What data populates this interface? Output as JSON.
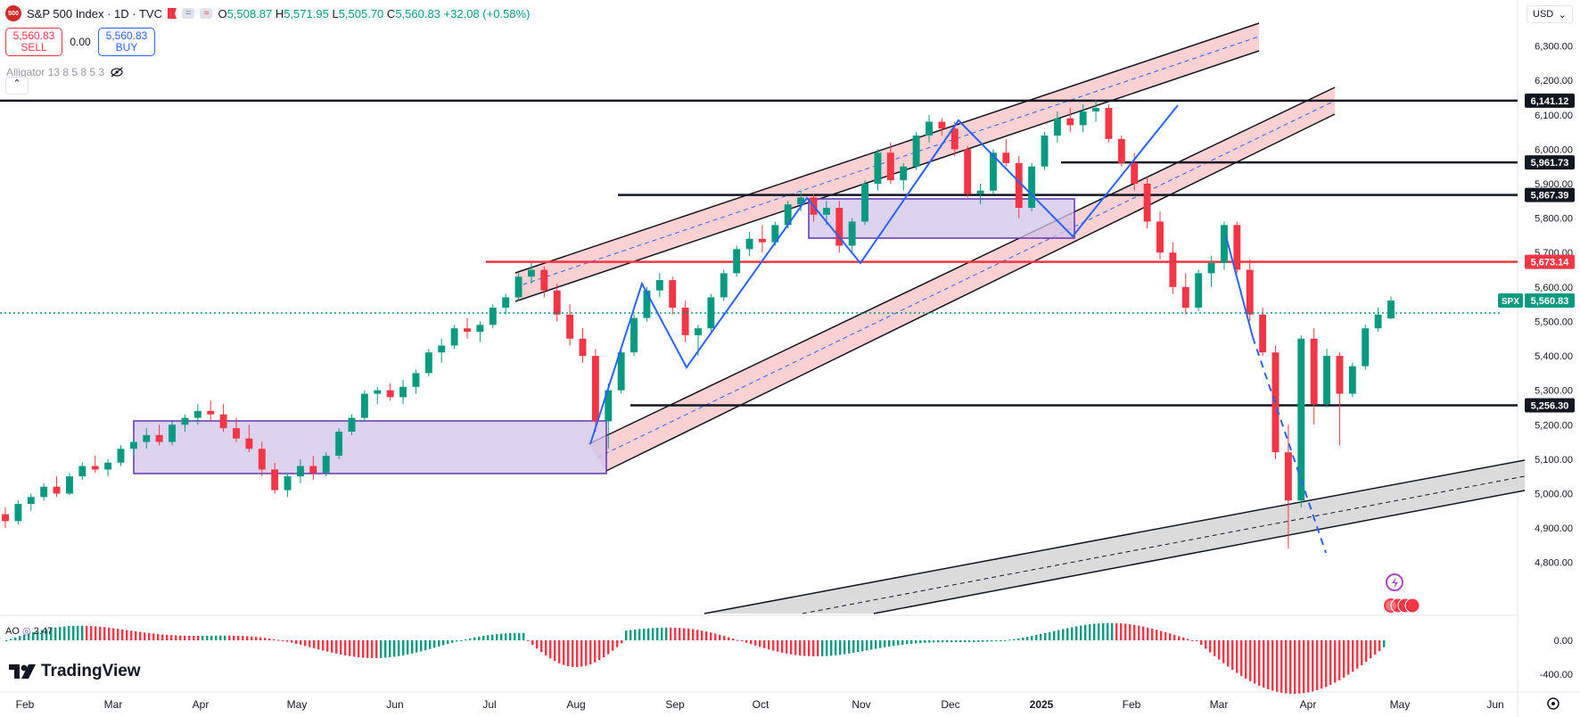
{
  "header": {
    "logo_text": "500",
    "title": "S&P 500 Index · 1D · TVC",
    "pill_eq": "=",
    "pill_wave": "≈",
    "ohlc": {
      "o_label": "O",
      "o": "5,508.87",
      "h_label": "H",
      "h": "5,571.95",
      "l_label": "L",
      "l": "5,505.70",
      "c_label": "C",
      "c": "5,560.83",
      "change": "+32.08 (+0.58%)"
    }
  },
  "trade": {
    "sell_price": "5,560.83",
    "sell_label": "SELL",
    "spread": "0.00",
    "buy_price": "5,560.83",
    "buy_label": "BUY"
  },
  "indicator": {
    "label": "Alligator 13 8 5 8 5 3",
    "visibility_icon": "eye-off-icon"
  },
  "collapse_icon": "chevron-up-icon",
  "currency": "USD",
  "brand": "TradingView",
  "oscillator": {
    "label": "AO",
    "value": "2.47",
    "ticks": [
      "0.00",
      "-400.00"
    ]
  },
  "colors": {
    "up": "#089981",
    "down": "#f23645",
    "pattern": "#2962ff",
    "channel_fill": "#f7c5c8",
    "box_fill": "#d1c4e9",
    "gray_band": "#cfcfcf"
  },
  "chart_data": {
    "type": "candlestick",
    "y_axis_ticks": [
      "6,300.00",
      "6,200.00",
      "6,100.00",
      "6,000.00",
      "5,900.00",
      "5,800.00",
      "5,700.00",
      "5,600.00",
      "5,500.00",
      "5,400.00",
      "5,300.00",
      "5,200.00",
      "5,100.00",
      "5,000.00",
      "4,900.00",
      "4,800.00"
    ],
    "ylim": [
      4710,
      6390
    ],
    "x_axis_ticks": [
      "Feb",
      "Mar",
      "Apr",
      "May",
      "Jun",
      "Jul",
      "Aug",
      "Sep",
      "Oct",
      "Nov",
      "Dec",
      "2025",
      "Feb",
      "Mar",
      "Apr",
      "May",
      "Jun"
    ],
    "price_labels": [
      {
        "text": "6,141.12",
        "value": 6141.12,
        "style": "dark"
      },
      {
        "text": "5,961.73",
        "value": 5961.73,
        "style": "dark"
      },
      {
        "text": "5,867.39",
        "value": 5867.39,
        "style": "dark"
      },
      {
        "text": "5,673.14",
        "value": 5673.14,
        "style": "red"
      },
      {
        "text": "5,560.83",
        "value": 5560.83,
        "style": "green",
        "tag": "SPX"
      },
      {
        "text": "5,256.30",
        "value": 5256.3,
        "style": "dark"
      }
    ],
    "last_close": 5560.83,
    "candles_approx": [
      [
        4940,
        4960,
        4900,
        4920
      ],
      [
        4920,
        4980,
        4910,
        4970
      ],
      [
        4970,
        5000,
        4950,
        4990
      ],
      [
        4990,
        5030,
        4980,
        5020
      ],
      [
        5020,
        5050,
        4990,
        5000
      ],
      [
        5000,
        5060,
        4995,
        5050
      ],
      [
        5050,
        5090,
        5040,
        5080
      ],
      [
        5080,
        5110,
        5060,
        5070
      ],
      [
        5070,
        5100,
        5050,
        5090
      ],
      [
        5090,
        5140,
        5080,
        5130
      ],
      [
        5130,
        5160,
        5110,
        5150
      ],
      [
        5150,
        5190,
        5130,
        5170
      ],
      [
        5170,
        5200,
        5140,
        5150
      ],
      [
        5150,
        5210,
        5140,
        5200
      ],
      [
        5200,
        5230,
        5180,
        5220
      ],
      [
        5220,
        5260,
        5200,
        5240
      ],
      [
        5240,
        5270,
        5210,
        5230
      ],
      [
        5230,
        5260,
        5180,
        5190
      ],
      [
        5190,
        5220,
        5150,
        5160
      ],
      [
        5160,
        5200,
        5120,
        5130
      ],
      [
        5130,
        5150,
        5050,
        5070
      ],
      [
        5070,
        5090,
        5000,
        5010
      ],
      [
        5010,
        5060,
        4990,
        5050
      ],
      [
        5050,
        5100,
        5030,
        5080
      ],
      [
        5080,
        5110,
        5040,
        5060
      ],
      [
        5060,
        5120,
        5050,
        5110
      ],
      [
        5110,
        5190,
        5100,
        5180
      ],
      [
        5180,
        5230,
        5170,
        5220
      ],
      [
        5220,
        5300,
        5210,
        5290
      ],
      [
        5290,
        5310,
        5260,
        5300
      ],
      [
        5300,
        5320,
        5270,
        5280
      ],
      [
        5280,
        5330,
        5260,
        5310
      ],
      [
        5310,
        5360,
        5290,
        5350
      ],
      [
        5350,
        5420,
        5340,
        5410
      ],
      [
        5410,
        5450,
        5380,
        5430
      ],
      [
        5430,
        5490,
        5420,
        5480
      ],
      [
        5480,
        5510,
        5450,
        5470
      ],
      [
        5470,
        5500,
        5440,
        5490
      ],
      [
        5490,
        5550,
        5480,
        5540
      ],
      [
        5540,
        5580,
        5520,
        5570
      ],
      [
        5570,
        5640,
        5560,
        5630
      ],
      [
        5630,
        5670,
        5610,
        5650
      ],
      [
        5650,
        5660,
        5570,
        5590
      ],
      [
        5590,
        5610,
        5500,
        5520
      ],
      [
        5520,
        5550,
        5430,
        5450
      ],
      [
        5450,
        5480,
        5380,
        5400
      ],
      [
        5400,
        5420,
        5180,
        5210
      ],
      [
        5210,
        5320,
        5130,
        5300
      ],
      [
        5300,
        5420,
        5290,
        5410
      ],
      [
        5410,
        5520,
        5400,
        5510
      ],
      [
        5510,
        5600,
        5500,
        5590
      ],
      [
        5590,
        5640,
        5570,
        5620
      ],
      [
        5620,
        5630,
        5520,
        5540
      ],
      [
        5540,
        5560,
        5440,
        5460
      ],
      [
        5460,
        5490,
        5400,
        5480
      ],
      [
        5480,
        5580,
        5470,
        5570
      ],
      [
        5570,
        5650,
        5560,
        5640
      ],
      [
        5640,
        5720,
        5630,
        5710
      ],
      [
        5710,
        5760,
        5690,
        5740
      ],
      [
        5740,
        5780,
        5700,
        5730
      ],
      [
        5730,
        5790,
        5720,
        5780
      ],
      [
        5780,
        5850,
        5770,
        5840
      ],
      [
        5840,
        5880,
        5820,
        5860
      ],
      [
        5860,
        5870,
        5790,
        5810
      ],
      [
        5810,
        5850,
        5780,
        5830
      ],
      [
        5830,
        5850,
        5700,
        5720
      ],
      [
        5720,
        5800,
        5700,
        5790
      ],
      [
        5790,
        5910,
        5780,
        5900
      ],
      [
        5900,
        6000,
        5880,
        5990
      ],
      [
        5990,
        6020,
        5900,
        5910
      ],
      [
        5910,
        5960,
        5880,
        5950
      ],
      [
        5950,
        6050,
        5940,
        6040
      ],
      [
        6040,
        6100,
        6020,
        6080
      ],
      [
        6080,
        6090,
        6040,
        6060
      ],
      [
        6060,
        6080,
        5980,
        6000
      ],
      [
        6000,
        6010,
        5860,
        5870
      ],
      [
        5870,
        5900,
        5840,
        5880
      ],
      [
        5880,
        6000,
        5870,
        5990
      ],
      [
        5990,
        6030,
        5950,
        5960
      ],
      [
        5960,
        5980,
        5800,
        5830
      ],
      [
        5830,
        5960,
        5820,
        5950
      ],
      [
        5950,
        6050,
        5940,
        6040
      ],
      [
        6040,
        6110,
        6020,
        6090
      ],
      [
        6090,
        6120,
        6050,
        6070
      ],
      [
        6070,
        6130,
        6050,
        6110
      ],
      [
        6110,
        6145,
        6080,
        6120
      ],
      [
        6120,
        6130,
        6020,
        6030
      ],
      [
        6030,
        6040,
        5950,
        5960
      ],
      [
        5960,
        5990,
        5880,
        5900
      ],
      [
        5900,
        5920,
        5770,
        5790
      ],
      [
        5790,
        5820,
        5680,
        5700
      ],
      [
        5700,
        5730,
        5580,
        5600
      ],
      [
        5600,
        5640,
        5520,
        5540
      ],
      [
        5540,
        5650,
        5530,
        5640
      ],
      [
        5640,
        5690,
        5600,
        5670
      ],
      [
        5670,
        5790,
        5650,
        5780
      ],
      [
        5780,
        5790,
        5640,
        5650
      ],
      [
        5650,
        5680,
        5500,
        5520
      ],
      [
        5520,
        5540,
        5400,
        5410
      ],
      [
        5410,
        5430,
        5100,
        5120
      ],
      [
        5120,
        5200,
        4840,
        4980
      ],
      [
        4980,
        5460,
        4960,
        5450
      ],
      [
        5450,
        5480,
        5200,
        5260
      ],
      [
        5260,
        5420,
        5250,
        5400
      ],
      [
        5400,
        5410,
        5140,
        5290
      ],
      [
        5290,
        5380,
        5280,
        5370
      ],
      [
        5370,
        5490,
        5360,
        5480
      ],
      [
        5480,
        5540,
        5470,
        5520
      ],
      [
        5508.87,
        5571.95,
        5505.7,
        5560.83
      ]
    ]
  }
}
